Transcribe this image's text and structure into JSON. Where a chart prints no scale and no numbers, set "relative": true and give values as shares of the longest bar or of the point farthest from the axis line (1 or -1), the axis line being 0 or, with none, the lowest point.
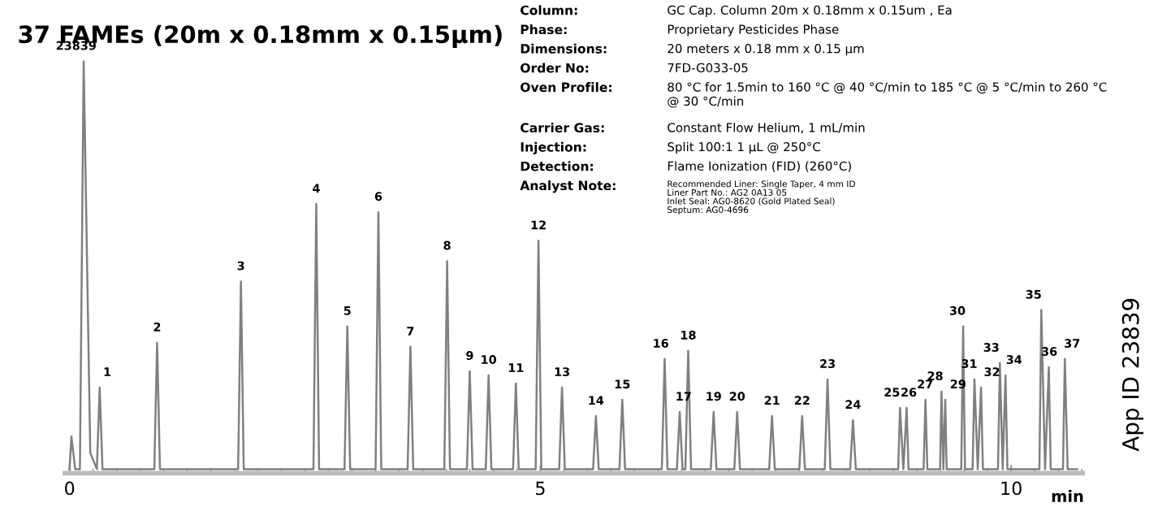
{
  "chart_data": {
    "type": "line",
    "relative": true,
    "title": "37 FAMEs (20m x 0.18mm x 0.15μm)",
    "xlabel": "min",
    "xlim": [
      -0.05,
      10.76
    ],
    "xticks": [
      0,
      5,
      10
    ],
    "grid": false,
    "legend": false,
    "marker": "none",
    "line_style": "solid",
    "series": [
      {
        "color": "#808080",
        "x": [
          0,
          0.02,
          0.06,
          0.11,
          0.15,
          0.22,
          0.29,
          0.32,
          0.35,
          0.9,
          0.93,
          0.96,
          1.79,
          1.82,
          1.85,
          2.59,
          2.62,
          2.65,
          2.92,
          2.95,
          2.98,
          3.25,
          3.28,
          3.31,
          3.59,
          3.62,
          3.65,
          3.98,
          4.01,
          4.04,
          4.22,
          4.25,
          4.28,
          4.42,
          4.45,
          4.48,
          4.71,
          4.74,
          4.77,
          4.95,
          4.98,
          5.01,
          5.2,
          5.23,
          5.26,
          5.56,
          5.59,
          5.62,
          5.84,
          5.87,
          5.9,
          6.29,
          6.32,
          6.35,
          6.45,
          6.48,
          6.51,
          6.54,
          6.57,
          6.6,
          6.81,
          6.84,
          6.87,
          7.06,
          7.09,
          7.12,
          7.43,
          7.46,
          7.49,
          7.75,
          7.78,
          7.81,
          8.02,
          8.05,
          8.08,
          8.29,
          8.32,
          8.35,
          8.8,
          8.82,
          8.855,
          8.89,
          8.91,
          9.07,
          9.09,
          9.11,
          9.245,
          9.26,
          9.28,
          9.3,
          9.315,
          9.47,
          9.49,
          9.51,
          9.59,
          9.61,
          9.645,
          9.68,
          9.7,
          9.86,
          9.88,
          9.91,
          9.94,
          9.96,
          10.3,
          10.32,
          10.36,
          10.4,
          10.42,
          10.55,
          10.57,
          10.6,
          10.7
        ],
        "values": [
          0,
          0.08,
          0,
          0,
          1.0,
          0.04,
          0,
          0.2,
          0,
          0,
          0.31,
          0,
          0,
          0.46,
          0,
          0,
          0.65,
          0,
          0,
          0.35,
          0,
          0,
          0.63,
          0,
          0,
          0.3,
          0,
          0,
          0.51,
          0,
          0,
          0.24,
          0,
          0,
          0.23,
          0,
          0,
          0.21,
          0,
          0,
          0.56,
          0,
          0,
          0.2,
          0,
          0,
          0.13,
          0,
          0,
          0.17,
          0,
          0,
          0.27,
          0,
          0,
          0.14,
          0,
          0,
          0.29,
          0,
          0,
          0.14,
          0,
          0,
          0.14,
          0,
          0,
          0.13,
          0,
          0,
          0.13,
          0,
          0,
          0.22,
          0,
          0,
          0.12,
          0,
          0,
          0.15,
          0,
          0.15,
          0,
          0,
          0.17,
          0,
          0,
          0.19,
          0,
          0.17,
          0,
          0,
          0.35,
          0,
          0,
          0.22,
          0,
          0.2,
          0,
          0,
          0.26,
          0,
          0.23,
          0,
          0,
          0.39,
          0,
          0.25,
          0,
          0,
          0.27,
          0,
          0
        ]
      }
    ],
    "annotations": [
      {
        "text": "23839",
        "x": 0.15,
        "y": 1.0
      },
      {
        "text": "1",
        "x": 0.32,
        "y": 0.2
      },
      {
        "text": "2",
        "x": 0.93,
        "y": 0.31
      },
      {
        "text": "3",
        "x": 1.82,
        "y": 0.46
      },
      {
        "text": "4",
        "x": 2.62,
        "y": 0.65
      },
      {
        "text": "5",
        "x": 2.95,
        "y": 0.35
      },
      {
        "text": "6",
        "x": 3.28,
        "y": 0.63
      },
      {
        "text": "7",
        "x": 3.62,
        "y": 0.3
      },
      {
        "text": "8",
        "x": 4.01,
        "y": 0.51
      },
      {
        "text": "9",
        "x": 4.25,
        "y": 0.24
      },
      {
        "text": "10",
        "x": 4.45,
        "y": 0.23
      },
      {
        "text": "11",
        "x": 4.74,
        "y": 0.21
      },
      {
        "text": "12",
        "x": 4.98,
        "y": 0.56
      },
      {
        "text": "13",
        "x": 5.23,
        "y": 0.2
      },
      {
        "text": "14",
        "x": 5.59,
        "y": 0.13
      },
      {
        "text": "15",
        "x": 5.87,
        "y": 0.17
      },
      {
        "text": "16",
        "x": 6.32,
        "y": 0.27
      },
      {
        "text": "17",
        "x": 6.48,
        "y": 0.14
      },
      {
        "text": "18",
        "x": 6.57,
        "y": 0.29
      },
      {
        "text": "19",
        "x": 6.84,
        "y": 0.14
      },
      {
        "text": "20",
        "x": 7.09,
        "y": 0.14
      },
      {
        "text": "21",
        "x": 7.46,
        "y": 0.13
      },
      {
        "text": "22",
        "x": 7.78,
        "y": 0.13
      },
      {
        "text": "23",
        "x": 8.05,
        "y": 0.22
      },
      {
        "text": "24",
        "x": 8.32,
        "y": 0.12
      },
      {
        "text": "25",
        "x": 8.82,
        "y": 0.15
      },
      {
        "text": "26",
        "x": 8.89,
        "y": 0.15
      },
      {
        "text": "27",
        "x": 9.09,
        "y": 0.17
      },
      {
        "text": "28",
        "x": 9.26,
        "y": 0.19
      },
      {
        "text": "29",
        "x": 9.3,
        "y": 0.17
      },
      {
        "text": "30",
        "x": 9.49,
        "y": 0.35
      },
      {
        "text": "31",
        "x": 9.61,
        "y": 0.22
      },
      {
        "text": "32",
        "x": 9.68,
        "y": 0.2
      },
      {
        "text": "33",
        "x": 9.88,
        "y": 0.26
      },
      {
        "text": "34",
        "x": 9.94,
        "y": 0.23
      },
      {
        "text": "35",
        "x": 10.32,
        "y": 0.39
      },
      {
        "text": "36",
        "x": 10.4,
        "y": 0.25
      },
      {
        "text": "37",
        "x": 10.57,
        "y": 0.27
      },
      "Column:\tGC Cap. Column 20m x 0.18mm x 0.15um , Ea",
      "Phase:\tProprietary Pesticides Phase",
      "Dimensions:\t20 meters x 0.18 mm x 0.15 µm",
      "Order No:\t7FD-G033-05",
      "Oven Profile:\t80 °C for 1.5min to 160 °C @ 40 °C/min to 185 °C @ 5 °C/min to 260 °C\n@ 30 °C/min",
      "Carrier Gas:\tConstant Flow Helium, 1 mL/min",
      "Injection:\tSplit 100:1 1 µL @ 250°C",
      "Detection:\tFlame Ionization (FID) (260°C)",
      "Analyst Note:\tRecommended Liner: Single Taper, 4 mm ID\nLiner Part No.: AG2 0A13 05\nInlet Seal: AG0-8620 (Gold Plated Seal)\nSeptum: AG0-4696",
      "App ID 23839"
    ]
  }
}
